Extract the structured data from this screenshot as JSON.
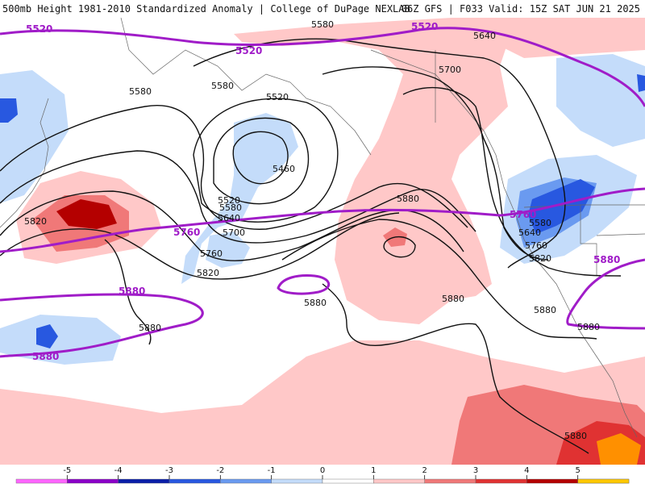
{
  "header": {
    "left_title": "500mb Height 1981-2010 Standardized Anomaly | College of DuPage NEXLAB",
    "right_title": "06Z GFS | F033 Valid: 15Z SAT JUN 21 2025"
  },
  "contours": {
    "black_labels": [
      "5580",
      "5640",
      "5700",
      "5580",
      "5520",
      "5580",
      "5460",
      "5520",
      "5580",
      "5640",
      "5700",
      "5760",
      "5820",
      "5880",
      "5820",
      "5880",
      "5880",
      "5880",
      "5760",
      "5820",
      "5640",
      "5580",
      "5880",
      "5880",
      "5880"
    ],
    "purple_labels": [
      "5520",
      "5520",
      "5520",
      "5760",
      "5760",
      "5880",
      "5880",
      "5880"
    ],
    "colors": {
      "black": "#111111",
      "purple": "#a01cc8"
    }
  },
  "colorbar": {
    "ticks": [
      "-5",
      "-4",
      "-3",
      "-2",
      "-1",
      "0",
      "1",
      "2",
      "3",
      "4",
      "5"
    ],
    "colors": [
      "#ff66ff",
      "#8a00c8",
      "#0a1ea8",
      "#2858e0",
      "#6a9af0",
      "#c4dcfa",
      "#ffffff",
      "#ffc8c8",
      "#f07878",
      "#e03232",
      "#b40000",
      "#ff9000",
      "#ffc800"
    ]
  }
}
